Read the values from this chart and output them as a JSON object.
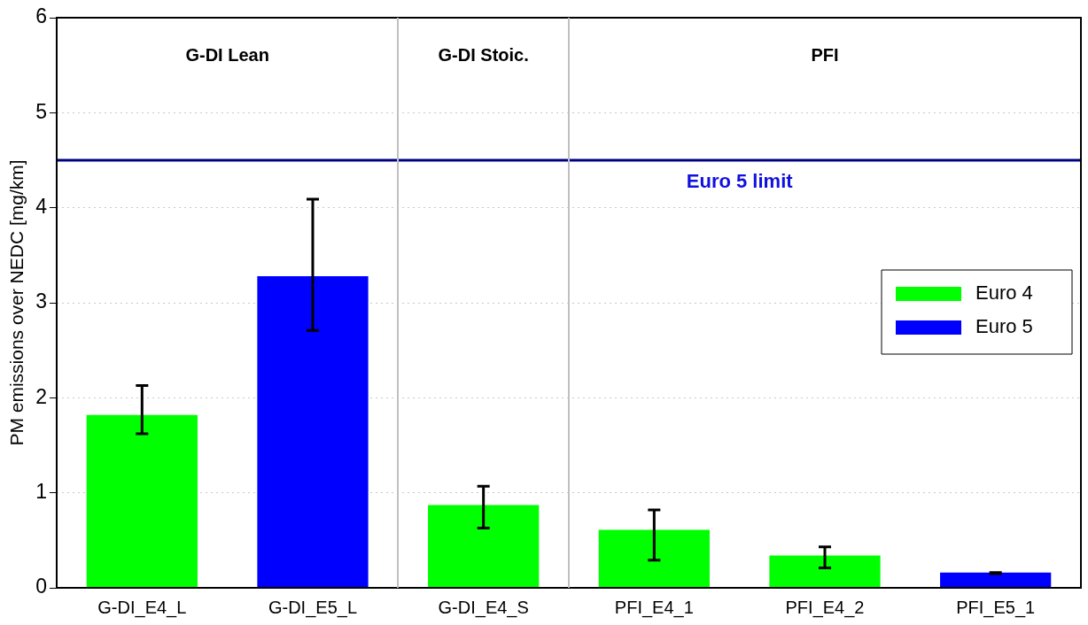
{
  "chart_data": {
    "type": "bar",
    "ylabel": "PM emissions over NEDC [mg/km]",
    "categories": [
      "G-DI_E4_L",
      "G-DI_E5_L",
      "G-DI_E4_S",
      "PFI_E4_1",
      "PFI_E4_2",
      "PFI_E5_1"
    ],
    "series": [
      {
        "name": "Euro 4",
        "color": "#00ff00",
        "values": [
          1.82,
          null,
          0.87,
          0.61,
          0.34,
          null
        ],
        "errors": [
          [
            1.62,
            2.13
          ],
          null,
          [
            0.63,
            1.07
          ],
          [
            0.29,
            0.82
          ],
          [
            0.21,
            0.43
          ],
          null
        ]
      },
      {
        "name": "Euro 5",
        "color": "#0000ff",
        "values": [
          null,
          3.28,
          null,
          null,
          null,
          0.16
        ],
        "errors": [
          null,
          [
            2.71,
            4.09
          ],
          null,
          null,
          null,
          [
            0.15,
            0.16
          ]
        ]
      }
    ],
    "ylim": [
      0,
      6
    ],
    "yticks": [
      0,
      1,
      2,
      3,
      4,
      5,
      6
    ],
    "grid": "y",
    "legend": "right",
    "ref_lines": [
      {
        "axis": "y",
        "value": 4.5,
        "label": "Euro 5 limit",
        "color": "#000080"
      }
    ],
    "annotations": [
      "G-DI Lean",
      "G-DI Stoic.",
      "PFI"
    ]
  }
}
